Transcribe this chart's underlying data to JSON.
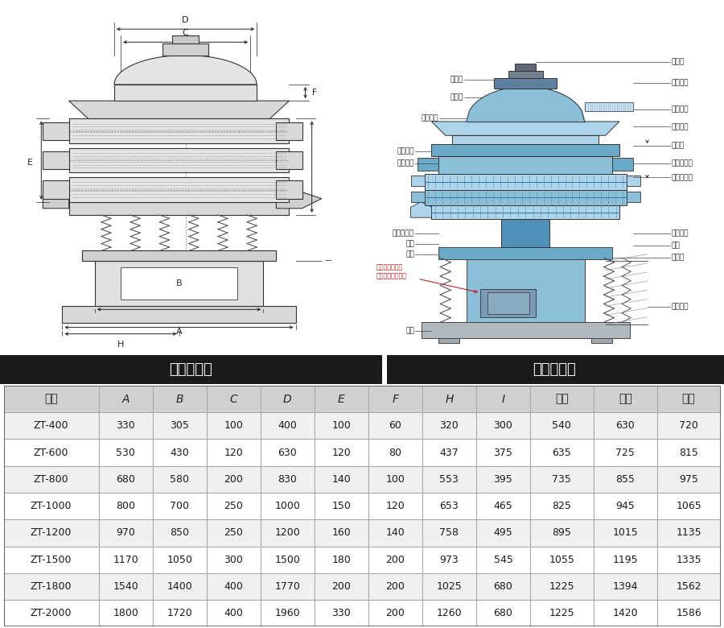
{
  "header_cols": [
    "型号",
    "A",
    "B",
    "C",
    "D",
    "E",
    "F",
    "H",
    "I",
    "一层",
    "二层",
    "三层"
  ],
  "rows": [
    [
      "ZT-400",
      "330",
      "305",
      "100",
      "400",
      "100",
      "60",
      "320",
      "300",
      "540",
      "630",
      "720"
    ],
    [
      "ZT-600",
      "530",
      "430",
      "120",
      "630",
      "120",
      "80",
      "437",
      "375",
      "635",
      "725",
      "815"
    ],
    [
      "ZT-800",
      "680",
      "580",
      "200",
      "830",
      "140",
      "100",
      "553",
      "395",
      "735",
      "855",
      "975"
    ],
    [
      "ZT-1000",
      "800",
      "700",
      "250",
      "1000",
      "150",
      "120",
      "653",
      "465",
      "825",
      "945",
      "1065"
    ],
    [
      "ZT-1200",
      "970",
      "850",
      "250",
      "1200",
      "160",
      "140",
      "758",
      "495",
      "895",
      "1015",
      "1135"
    ],
    [
      "ZT-1500",
      "1170",
      "1050",
      "300",
      "1500",
      "180",
      "200",
      "973",
      "545",
      "1055",
      "1195",
      "1335"
    ],
    [
      "ZT-1800",
      "1540",
      "1400",
      "400",
      "1770",
      "200",
      "200",
      "1025",
      "680",
      "1225",
      "1394",
      "1562"
    ],
    [
      "ZT-2000",
      "1800",
      "1720",
      "400",
      "1960",
      "330",
      "200",
      "1260",
      "680",
      "1225",
      "1420",
      "1586"
    ]
  ],
  "label_left": "外形尺寸图",
  "label_right": "一般结构图",
  "col_widths": [
    1.5,
    0.85,
    0.85,
    0.85,
    0.85,
    0.85,
    0.85,
    0.85,
    0.85,
    1.0,
    1.0,
    1.0
  ],
  "header_bg": "#d0d0d0",
  "header_fg": "#222222",
  "row_bg_even": "#f0f0f0",
  "row_bg_odd": "#ffffff",
  "border_color": "#aaaaaa",
  "section_bg": "#1a1a1a",
  "section_fg": "#ffffff",
  "fig_width": 9.0,
  "fig_height": 7.8
}
